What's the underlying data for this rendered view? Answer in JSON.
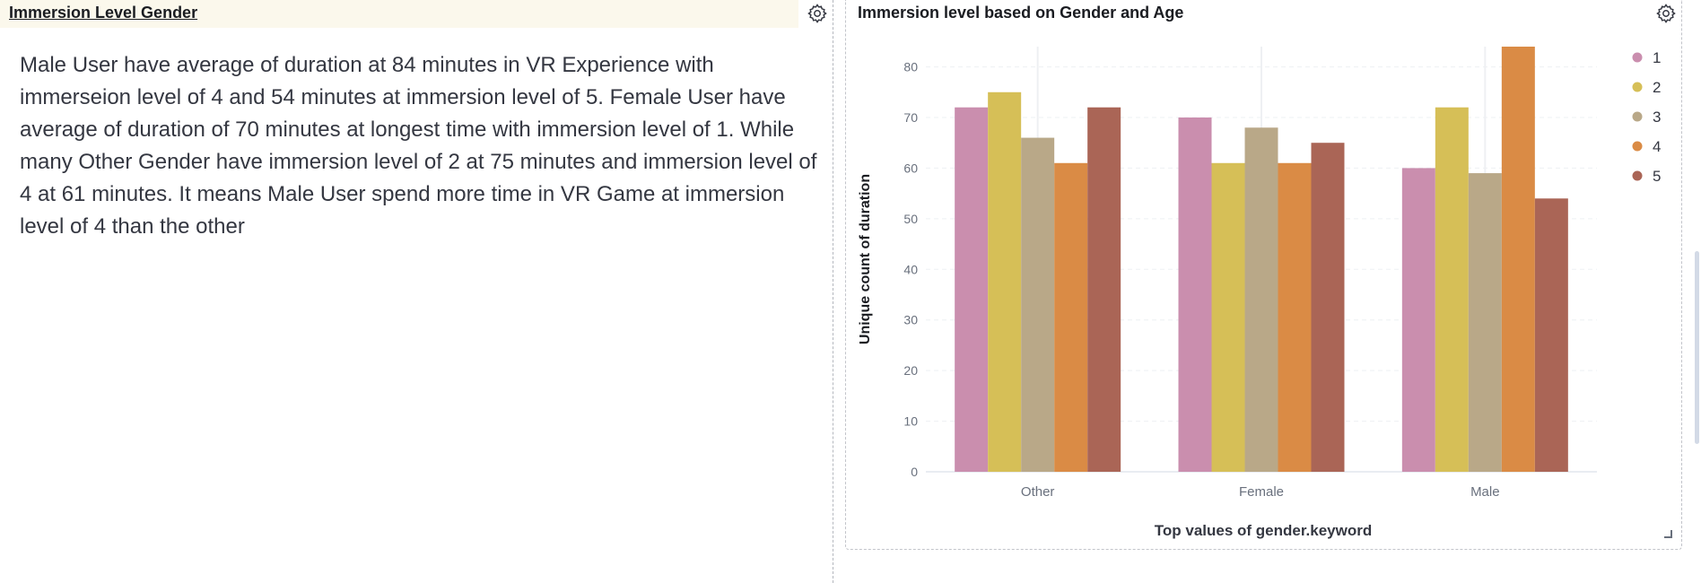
{
  "left_panel": {
    "title": "Immersion Level Gender",
    "markdown_text": "Male User have average of duration at 84 minutes in VR Experience with immerseion level of 4 and 54 minutes at immersion level of 5. Female User have average of duration of 70 minutes at longest time with immersion level of 1. While many Other Gender have immersion level of 2 at 75 minutes and immersion level of 4 at 61 minutes. It means Male User spend more time in VR Game at immersion level of 4 than the other",
    "settings_icon": "gear-icon"
  },
  "right_panel": {
    "title": "Immersion level based on Gender and Age",
    "settings_icon": "gear-icon"
  },
  "chart_data": {
    "type": "bar",
    "title": "Immersion level based on Gender and Age",
    "xlabel": "Top values of gender.keyword",
    "ylabel": "Unique count of duration",
    "categories": [
      "Other",
      "Female",
      "Male"
    ],
    "ylim": [
      0,
      84
    ],
    "yticks": [
      0,
      10,
      20,
      30,
      40,
      50,
      60,
      70,
      80
    ],
    "grid": true,
    "legend_position": "top-right",
    "series": [
      {
        "name": "1",
        "color": "#ca8eae",
        "values": [
          72,
          70,
          60
        ]
      },
      {
        "name": "2",
        "color": "#d6bf57",
        "values": [
          75,
          61,
          72
        ]
      },
      {
        "name": "3",
        "color": "#b9a888",
        "values": [
          66,
          68,
          59
        ]
      },
      {
        "name": "4",
        "color": "#da8b45",
        "values": [
          61,
          61,
          84
        ]
      },
      {
        "name": "5",
        "color": "#aa6556",
        "values": [
          72,
          65,
          54
        ]
      }
    ]
  }
}
